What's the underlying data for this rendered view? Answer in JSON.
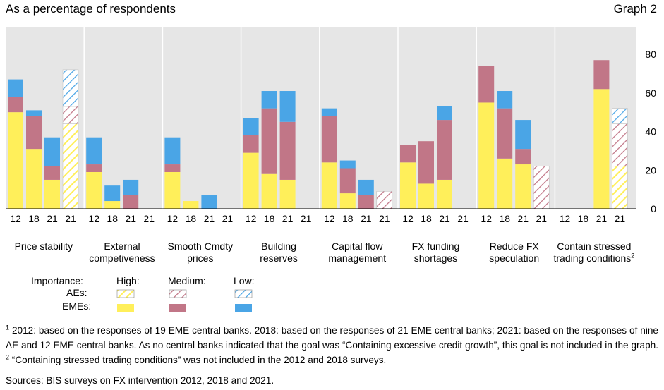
{
  "header": {
    "subtitle": "As a percentage of respondents",
    "graph_label": "Graph 2"
  },
  "colors": {
    "high": "#ffef5a",
    "medium": "#c17687",
    "low": "#4aa5e6",
    "background": "#e6e6e6"
  },
  "chart_data": {
    "type": "bar",
    "stacked": true,
    "ylim": [
      0,
      90
    ],
    "yticks": [
      0,
      20,
      40,
      60,
      80
    ],
    "y_axis_side": "right",
    "grid": false,
    "groups": [
      {
        "label": [
          "Price stability"
        ],
        "bars": [
          {
            "year": "12",
            "type": "EMEs",
            "High": 50,
            "Medium": 8,
            "Low": 9
          },
          {
            "year": "18",
            "type": "EMEs",
            "High": 31,
            "Medium": 17,
            "Low": 3
          },
          {
            "year": "21",
            "type": "EMEs",
            "High": 15,
            "Medium": 7,
            "Low": 15
          },
          {
            "year": "21",
            "type": "AEs",
            "High": 44,
            "Medium": 9,
            "Low": 19
          }
        ]
      },
      {
        "label": [
          "External",
          "competiveness"
        ],
        "bars": [
          {
            "year": "12",
            "type": "EMEs",
            "High": 19,
            "Medium": 4,
            "Low": 14
          },
          {
            "year": "18",
            "type": "EMEs",
            "High": 4,
            "Medium": 0,
            "Low": 8
          },
          {
            "year": "21",
            "type": "EMEs",
            "High": 0,
            "Medium": 7,
            "Low": 8
          },
          {
            "year": "21",
            "type": "AEs",
            "High": 0,
            "Medium": 0,
            "Low": 0
          }
        ]
      },
      {
        "label": [
          "Smooth Cmdty",
          "prices"
        ],
        "bars": [
          {
            "year": "12",
            "type": "EMEs",
            "High": 19,
            "Medium": 4,
            "Low": 14
          },
          {
            "year": "18",
            "type": "EMEs",
            "High": 4,
            "Medium": 0,
            "Low": 0
          },
          {
            "year": "21",
            "type": "EMEs",
            "High": 0,
            "Medium": 0,
            "Low": 7
          },
          {
            "year": "21",
            "type": "AEs",
            "High": 0,
            "Medium": 0,
            "Low": 0
          }
        ]
      },
      {
        "label": [
          "Building",
          "reserves"
        ],
        "bars": [
          {
            "year": "12",
            "type": "EMEs",
            "High": 29,
            "Medium": 9,
            "Low": 9
          },
          {
            "year": "18",
            "type": "EMEs",
            "High": 18,
            "Medium": 34,
            "Low": 9
          },
          {
            "year": "21",
            "type": "EMEs",
            "High": 15,
            "Medium": 30,
            "Low": 16
          },
          {
            "year": "21",
            "type": "AEs",
            "High": 0,
            "Medium": 0,
            "Low": 0
          }
        ]
      },
      {
        "label": [
          "Capital flow",
          "management"
        ],
        "bars": [
          {
            "year": "12",
            "type": "EMEs",
            "High": 24,
            "Medium": 24,
            "Low": 4
          },
          {
            "year": "18",
            "type": "EMEs",
            "High": 8,
            "Medium": 13,
            "Low": 4
          },
          {
            "year": "21",
            "type": "EMEs",
            "High": 0,
            "Medium": 7,
            "Low": 8
          },
          {
            "year": "21",
            "type": "AEs",
            "High": 0,
            "Medium": 9,
            "Low": 0
          }
        ]
      },
      {
        "label": [
          "FX funding",
          "shortages"
        ],
        "bars": [
          {
            "year": "12",
            "type": "EMEs",
            "High": 24,
            "Medium": 9,
            "Low": 0
          },
          {
            "year": "18",
            "type": "EMEs",
            "High": 13,
            "Medium": 22,
            "Low": 0
          },
          {
            "year": "21",
            "type": "EMEs",
            "High": 15,
            "Medium": 31,
            "Low": 7
          },
          {
            "year": "21",
            "type": "AEs",
            "High": 0,
            "Medium": 0,
            "Low": 0
          }
        ]
      },
      {
        "label": [
          "Reduce FX",
          "speculation"
        ],
        "bars": [
          {
            "year": "12",
            "type": "EMEs",
            "High": 55,
            "Medium": 19,
            "Low": 0
          },
          {
            "year": "18",
            "type": "EMEs",
            "High": 26,
            "Medium": 26,
            "Low": 9
          },
          {
            "year": "21",
            "type": "EMEs",
            "High": 23,
            "Medium": 8,
            "Low": 15
          },
          {
            "year": "21",
            "type": "AEs",
            "High": 0,
            "Medium": 22,
            "Low": 0
          }
        ]
      },
      {
        "label": [
          "Contain stressed",
          "trading conditions"
        ],
        "footnote_ref": "2",
        "bars": [
          {
            "year": "12",
            "type": "EMEs",
            "High": 0,
            "Medium": 0,
            "Low": 0
          },
          {
            "year": "18",
            "type": "EMEs",
            "High": 0,
            "Medium": 0,
            "Low": 0
          },
          {
            "year": "21",
            "type": "EMEs",
            "High": 62,
            "Medium": 15,
            "Low": 0
          },
          {
            "year": "21",
            "type": "AEs",
            "High": 22,
            "Medium": 22,
            "Low": 8
          }
        ]
      }
    ]
  },
  "legend": {
    "title": "Importance:",
    "rows": [
      "AEs:",
      "EMEs:"
    ],
    "columns": [
      "High:",
      "Medium:",
      "Low:"
    ]
  },
  "footnotes": {
    "note1_marker": "1",
    "note1": "2012: based on the responses of 19 EME central banks. 2018: based on the responses of 21 EME central banks; 2021: based on the responses of nine AE and 12 EME central banks. As no central banks indicated that the goal was “Containing excessive credit growth”, this goal is not included in the graph.",
    "note2_marker": "2",
    "note2": "“Containing stressed trading conditions” was not included in the 2012 and 2018 surveys.",
    "sources": "Sources: BIS surveys on FX intervention 2012, 2018 and 2021."
  }
}
